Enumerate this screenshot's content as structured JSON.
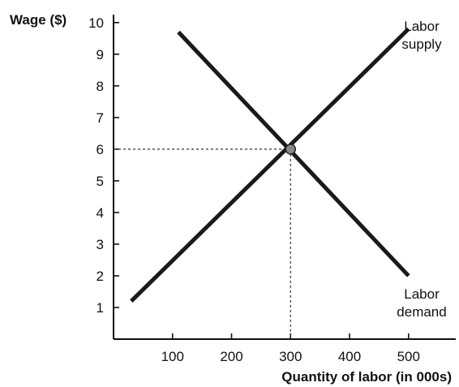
{
  "chart_data": {
    "type": "line",
    "title": "",
    "xlabel": "Quantity of labor (in 000s)",
    "ylabel": "Wage ($)",
    "xlim": [
      0,
      580
    ],
    "ylim": [
      0,
      10.2
    ],
    "xticks": [
      100,
      200,
      300,
      400,
      500
    ],
    "yticks": [
      1,
      2,
      3,
      4,
      5,
      6,
      7,
      8,
      9,
      10
    ],
    "grid": false,
    "series": [
      {
        "name": "Labor supply",
        "label_lines": [
          "Labor",
          "supply"
        ],
        "x": [
          30,
          500
        ],
        "y": [
          1.2,
          9.8
        ],
        "color": "#1a1a1a"
      },
      {
        "name": "Labor demand",
        "label_lines": [
          "Labor",
          "demand"
        ],
        "x": [
          110,
          500
        ],
        "y": [
          9.7,
          2.0
        ],
        "color": "#1a1a1a"
      }
    ],
    "equilibrium": {
      "x": 300,
      "y": 6
    }
  }
}
